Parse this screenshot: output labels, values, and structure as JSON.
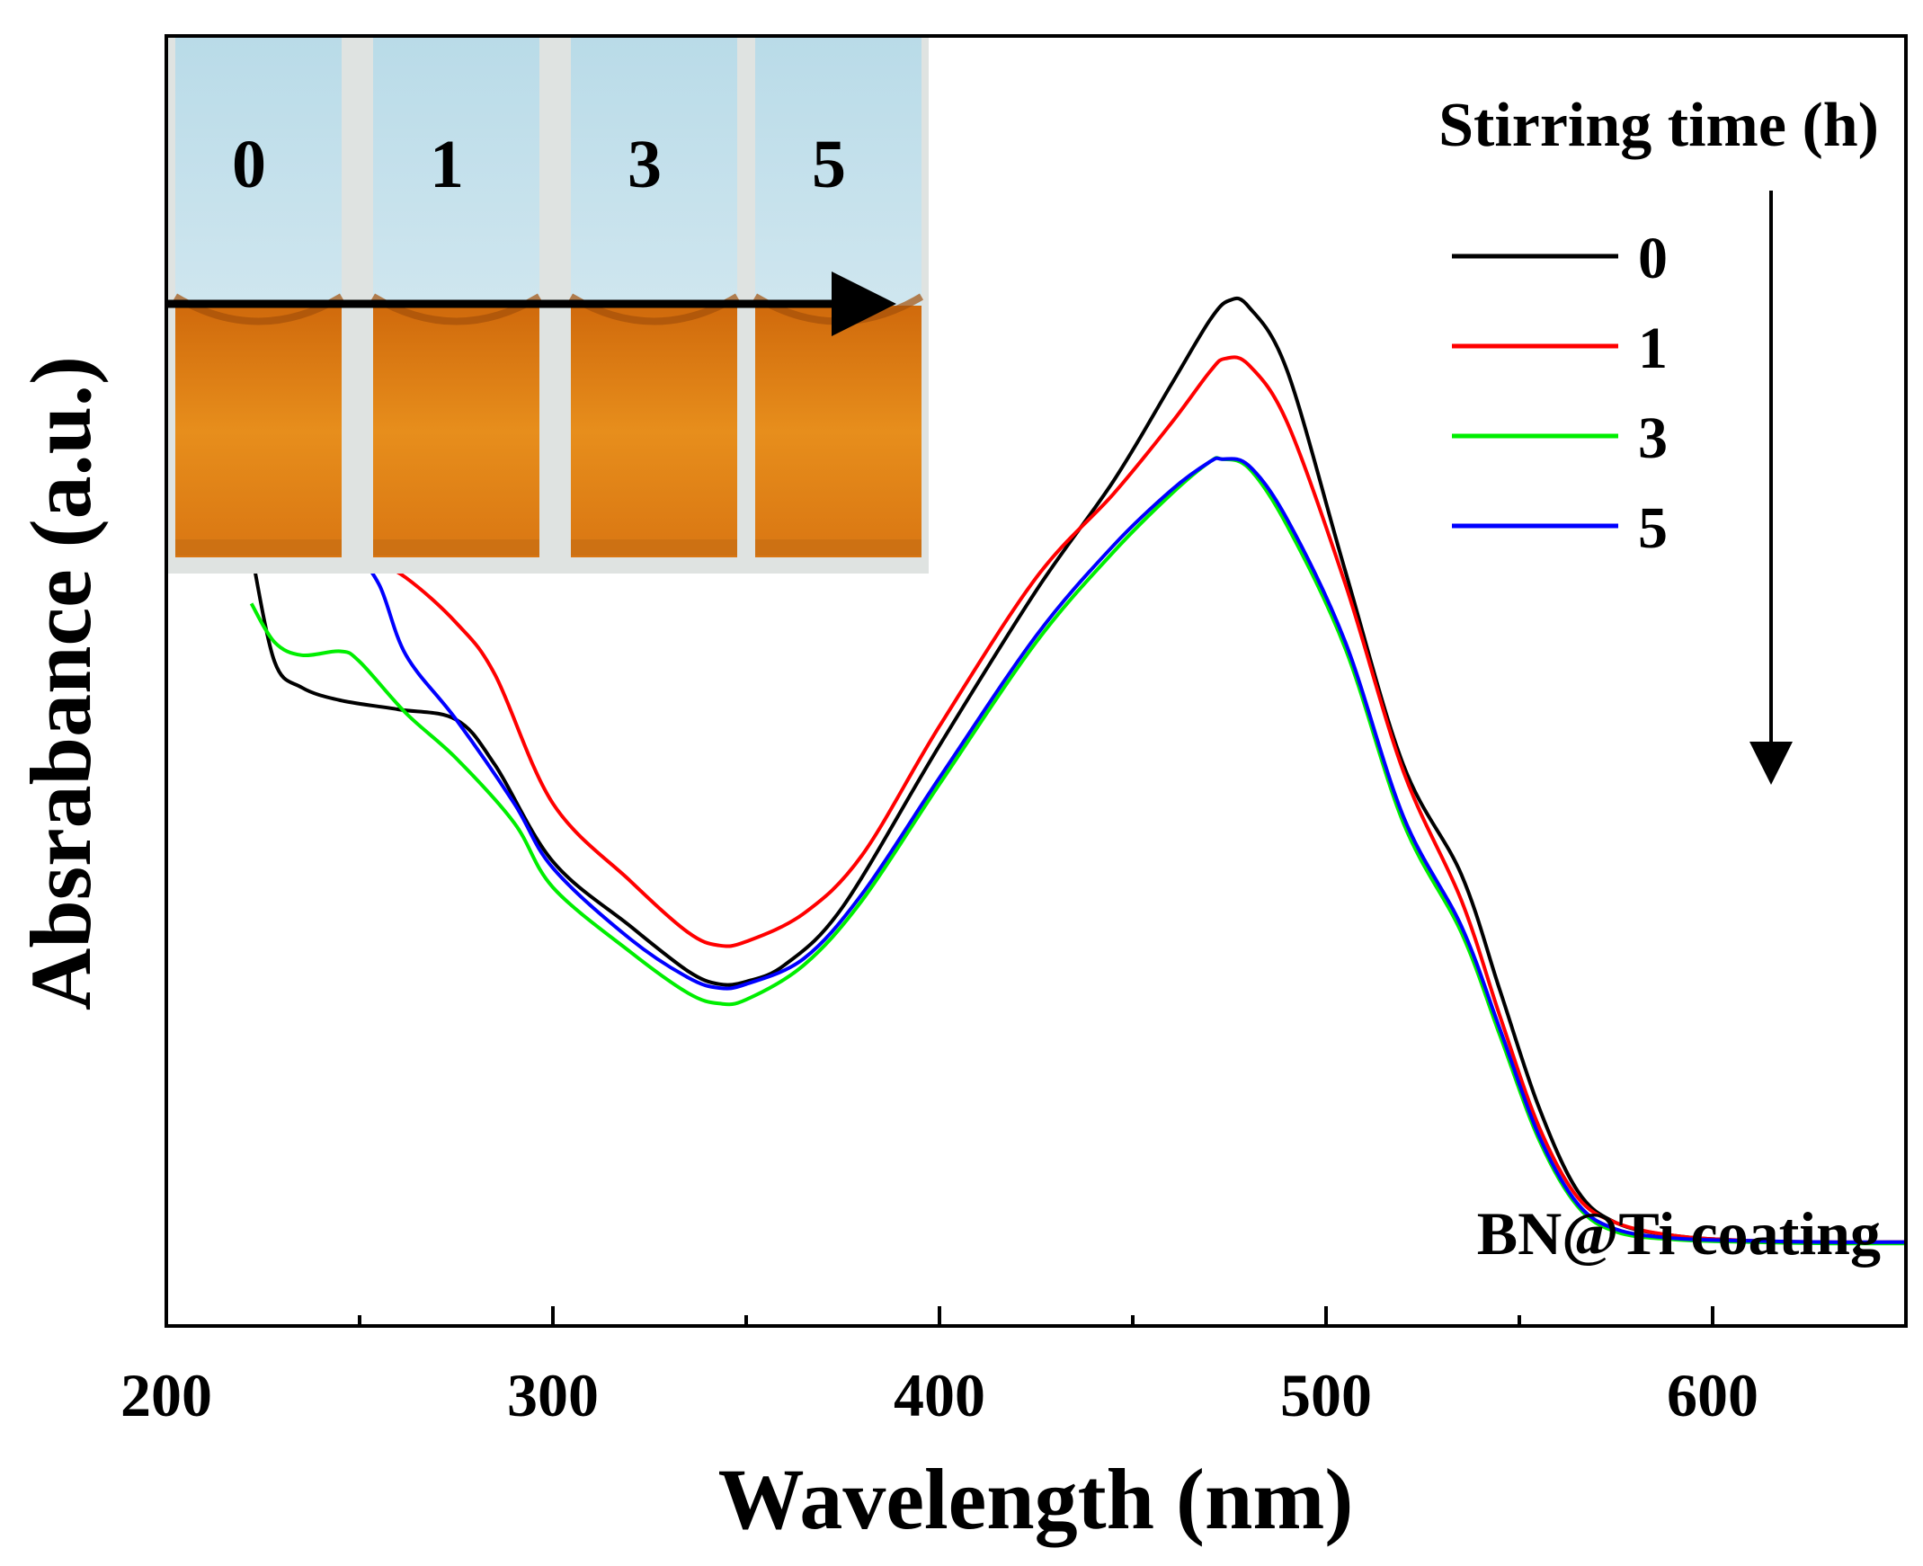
{
  "chart_data": {
    "type": "line",
    "title": "",
    "xlabel": "Wavelength (nm)",
    "ylabel": "Absrabance (a.u.)",
    "xlim": [
      200,
      650
    ],
    "ylim": [
      0,
      1
    ],
    "x_ticks": [
      200,
      300,
      400,
      500,
      600
    ],
    "x_tick_labels": [
      "200",
      "300",
      "400",
      "500",
      "600"
    ],
    "y_ticks_shown": false,
    "legend": {
      "title": "Stirring time (h)",
      "position": "top-right",
      "entries": [
        "0",
        "1",
        "3",
        "5"
      ]
    },
    "annotations": {
      "sample": "BN@Ti coating",
      "trend_arrow": "downward"
    },
    "inset": {
      "description": "photo",
      "vial_labels": [
        "0",
        "1",
        "3",
        "5"
      ]
    },
    "series": [
      {
        "name": "0",
        "color": "#000000",
        "points": [
          [
            222,
            0.6
          ],
          [
            228,
            0.515
          ],
          [
            235,
            0.495
          ],
          [
            245,
            0.485
          ],
          [
            260,
            0.478
          ],
          [
            275,
            0.47
          ],
          [
            285,
            0.435
          ],
          [
            300,
            0.36
          ],
          [
            320,
            0.31
          ],
          [
            335,
            0.275
          ],
          [
            343,
            0.265
          ],
          [
            350,
            0.267
          ],
          [
            360,
            0.28
          ],
          [
            375,
            0.325
          ],
          [
            400,
            0.45
          ],
          [
            425,
            0.57
          ],
          [
            445,
            0.655
          ],
          [
            460,
            0.73
          ],
          [
            470,
            0.78
          ],
          [
            475,
            0.795
          ],
          [
            480,
            0.79
          ],
          [
            490,
            0.74
          ],
          [
            505,
            0.585
          ],
          [
            520,
            0.435
          ],
          [
            535,
            0.35
          ],
          [
            545,
            0.26
          ],
          [
            555,
            0.17
          ],
          [
            565,
            0.105
          ],
          [
            575,
            0.08
          ],
          [
            590,
            0.07
          ],
          [
            610,
            0.066
          ],
          [
            630,
            0.065
          ],
          [
            650,
            0.065
          ]
        ]
      },
      {
        "name": "1",
        "color": "#ff0000",
        "points": [
          [
            250,
            0.6
          ],
          [
            262,
            0.58
          ],
          [
            275,
            0.545
          ],
          [
            285,
            0.505
          ],
          [
            300,
            0.405
          ],
          [
            320,
            0.345
          ],
          [
            335,
            0.305
          ],
          [
            343,
            0.295
          ],
          [
            350,
            0.298
          ],
          [
            365,
            0.32
          ],
          [
            380,
            0.365
          ],
          [
            400,
            0.465
          ],
          [
            425,
            0.58
          ],
          [
            445,
            0.645
          ],
          [
            460,
            0.7
          ],
          [
            470,
            0.74
          ],
          [
            474,
            0.75
          ],
          [
            480,
            0.745
          ],
          [
            490,
            0.7
          ],
          [
            505,
            0.575
          ],
          [
            520,
            0.43
          ],
          [
            535,
            0.33
          ],
          [
            545,
            0.24
          ],
          [
            555,
            0.155
          ],
          [
            565,
            0.1
          ],
          [
            575,
            0.08
          ],
          [
            590,
            0.07
          ],
          [
            610,
            0.066
          ],
          [
            630,
            0.065
          ],
          [
            650,
            0.065
          ]
        ]
      },
      {
        "name": "3",
        "color": "#00ee00",
        "points": [
          [
            222,
            0.56
          ],
          [
            228,
            0.53
          ],
          [
            235,
            0.52
          ],
          [
            245,
            0.523
          ],
          [
            250,
            0.515
          ],
          [
            262,
            0.475
          ],
          [
            275,
            0.44
          ],
          [
            290,
            0.39
          ],
          [
            300,
            0.34
          ],
          [
            320,
            0.29
          ],
          [
            335,
            0.258
          ],
          [
            343,
            0.25
          ],
          [
            350,
            0.253
          ],
          [
            365,
            0.28
          ],
          [
            380,
            0.33
          ],
          [
            400,
            0.42
          ],
          [
            425,
            0.53
          ],
          [
            445,
            0.6
          ],
          [
            460,
            0.645
          ],
          [
            470,
            0.67
          ],
          [
            473,
            0.672
          ],
          [
            480,
            0.665
          ],
          [
            490,
            0.62
          ],
          [
            505,
            0.525
          ],
          [
            520,
            0.39
          ],
          [
            535,
            0.305
          ],
          [
            545,
            0.225
          ],
          [
            555,
            0.145
          ],
          [
            565,
            0.093
          ],
          [
            575,
            0.073
          ],
          [
            590,
            0.067
          ],
          [
            610,
            0.065
          ],
          [
            630,
            0.064
          ],
          [
            650,
            0.064
          ]
        ]
      },
      {
        "name": "5",
        "color": "#0000ff",
        "points": [
          [
            238,
            0.6
          ],
          [
            248,
            0.598
          ],
          [
            255,
            0.575
          ],
          [
            262,
            0.52
          ],
          [
            275,
            0.47
          ],
          [
            290,
            0.405
          ],
          [
            300,
            0.355
          ],
          [
            320,
            0.3
          ],
          [
            335,
            0.27
          ],
          [
            343,
            0.262
          ],
          [
            350,
            0.265
          ],
          [
            365,
            0.285
          ],
          [
            380,
            0.335
          ],
          [
            400,
            0.425
          ],
          [
            425,
            0.535
          ],
          [
            445,
            0.605
          ],
          [
            460,
            0.648
          ],
          [
            470,
            0.67
          ],
          [
            473,
            0.672
          ],
          [
            480,
            0.667
          ],
          [
            490,
            0.625
          ],
          [
            505,
            0.53
          ],
          [
            520,
            0.395
          ],
          [
            535,
            0.31
          ],
          [
            545,
            0.23
          ],
          [
            555,
            0.148
          ],
          [
            565,
            0.095
          ],
          [
            575,
            0.075
          ],
          [
            590,
            0.068
          ],
          [
            610,
            0.066
          ],
          [
            630,
            0.065
          ],
          [
            650,
            0.065
          ]
        ]
      }
    ]
  }
}
